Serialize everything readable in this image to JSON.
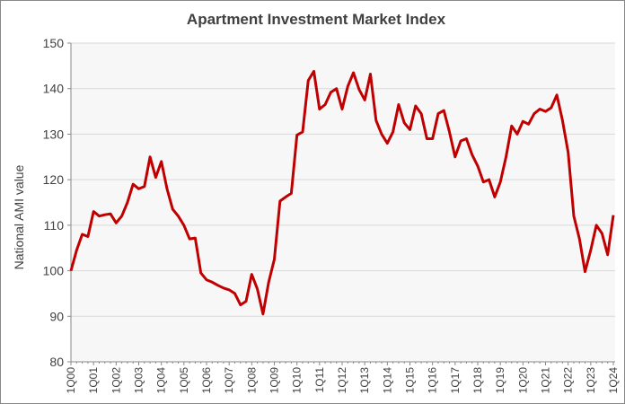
{
  "chart_data": {
    "type": "line",
    "title": "Apartment Investment Market Index",
    "y_label": "National AMI value",
    "categories": [
      "1Q00",
      null,
      null,
      null,
      "1Q01",
      null,
      null,
      null,
      "1Q02",
      null,
      null,
      null,
      "1Q03",
      null,
      null,
      null,
      "1Q04",
      null,
      null,
      null,
      "1Q05",
      null,
      null,
      null,
      "1Q06",
      null,
      null,
      null,
      "1Q07",
      null,
      null,
      null,
      "1Q08",
      null,
      null,
      null,
      "1Q09",
      null,
      null,
      null,
      "1Q10",
      null,
      null,
      null,
      "1Q11",
      null,
      null,
      null,
      "1Q12",
      null,
      null,
      null,
      "1Q13",
      null,
      null,
      null,
      "1Q14",
      null,
      null,
      null,
      "1Q15",
      null,
      null,
      null,
      "1Q16",
      null,
      null,
      null,
      "1Q17",
      null,
      null,
      null,
      "1Q18",
      null,
      null,
      null,
      "1Q19",
      null,
      null,
      null,
      "1Q20",
      null,
      null,
      null,
      "1Q21",
      null,
      null,
      null,
      "1Q22",
      null,
      null,
      null,
      "1Q23",
      null,
      null,
      null,
      "1Q24"
    ],
    "values": [
      100,
      104.5,
      108,
      107.5,
      113,
      112,
      112.3,
      112.5,
      110.5,
      112,
      115,
      119,
      118,
      118.5,
      125,
      120.5,
      124,
      118,
      113.5,
      112,
      110,
      107,
      107.2,
      99.5,
      98,
      97.5,
      96.8,
      96.2,
      95.8,
      95,
      92.5,
      93.3,
      99.2,
      96,
      90.5,
      97.5,
      102.5,
      115.3,
      116.2,
      117,
      129.8,
      130.5,
      141.8,
      143.8,
      135.5,
      136.5,
      139.2,
      140,
      135.5,
      140.5,
      143.5,
      139.8,
      137.5,
      143.2,
      133,
      130,
      128,
      130.5,
      136.5,
      132.5,
      131,
      136.2,
      134.5,
      129,
      129,
      134.5,
      135.2,
      130.5,
      125,
      128.5,
      129,
      125.5,
      123,
      119.5,
      120,
      116.2,
      119.5,
      125,
      131.8,
      130,
      132.8,
      132.2,
      134.5,
      135.5,
      135,
      135.8,
      138.6,
      133,
      126,
      112,
      107,
      99.8,
      104.5,
      110,
      108.2,
      103.5,
      112.2
    ],
    "color": "#c00000",
    "ylim": [
      80,
      150
    ],
    "yticks": [
      80,
      90,
      100,
      110,
      120,
      130,
      140,
      150
    ],
    "grid": true
  }
}
